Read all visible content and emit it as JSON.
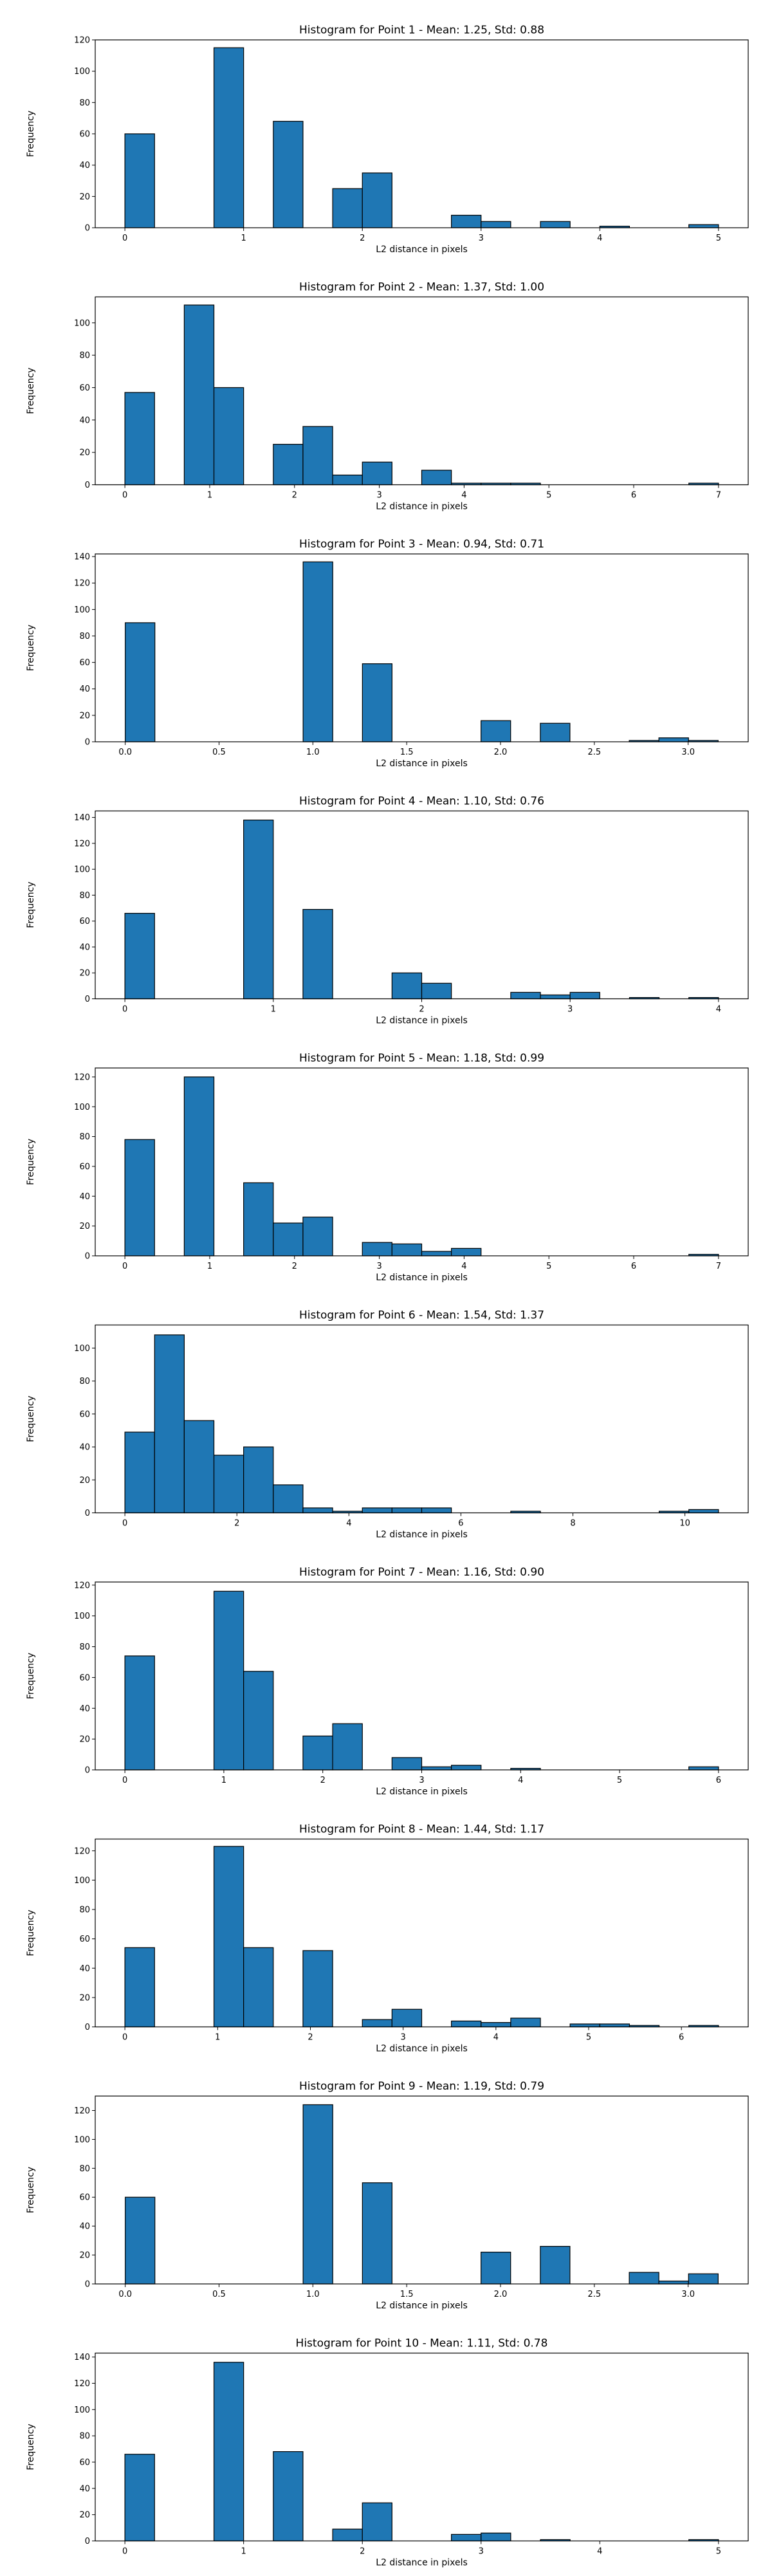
{
  "chart_data": [
    {
      "type": "bar",
      "title": "Histogram for Point 1 - Mean: 1.25, Std: 0.88",
      "xlabel": "L2 distance in pixels",
      "ylabel": "Frequency",
      "xlim": [
        -0.25,
        5.25
      ],
      "ylim": [
        0,
        120
      ],
      "xticks": [
        0,
        1,
        2,
        3,
        4,
        5
      ],
      "xtick_labels": [
        "0",
        "1",
        "2",
        "3",
        "4",
        "5"
      ],
      "yticks": [
        0,
        20,
        40,
        60,
        80,
        100,
        120
      ],
      "ytick_labels": [
        "0",
        "20",
        "40",
        "60",
        "80",
        "100",
        "120"
      ],
      "bins": [
        [
          0,
          0.25,
          60
        ],
        [
          0.75,
          1.0,
          115
        ],
        [
          1.25,
          1.5,
          68
        ],
        [
          1.75,
          2.0,
          25
        ],
        [
          2.0,
          2.25,
          35
        ],
        [
          2.75,
          3.0,
          8
        ],
        [
          3.0,
          3.25,
          4
        ],
        [
          3.5,
          3.75,
          4
        ],
        [
          4.0,
          4.25,
          1
        ],
        [
          4.75,
          5.0,
          2
        ]
      ]
    },
    {
      "type": "bar",
      "title": "Histogram for Point 2 - Mean: 1.37, Std: 1.00",
      "xlabel": "L2 distance in pixels",
      "ylabel": "Frequency",
      "xlim": [
        -0.35,
        7.35
      ],
      "ylim": [
        0,
        116
      ],
      "xticks": [
        0,
        1,
        2,
        3,
        4,
        5,
        6,
        7
      ],
      "xtick_labels": [
        "0",
        "1",
        "2",
        "3",
        "4",
        "5",
        "6",
        "7"
      ],
      "yticks": [
        0,
        20,
        40,
        60,
        80,
        100
      ],
      "ytick_labels": [
        "0",
        "20",
        "40",
        "60",
        "80",
        "100"
      ],
      "bins": [
        [
          0,
          0.35,
          57
        ],
        [
          0.7,
          1.05,
          111
        ],
        [
          1.05,
          1.4,
          60
        ],
        [
          1.75,
          2.1,
          25
        ],
        [
          2.1,
          2.45,
          36
        ],
        [
          2.45,
          2.8,
          6
        ],
        [
          2.8,
          3.15,
          14
        ],
        [
          3.5,
          3.85,
          9
        ],
        [
          3.85,
          4.2,
          1
        ],
        [
          4.2,
          4.55,
          1
        ],
        [
          4.55,
          4.9,
          1
        ],
        [
          6.65,
          7.0,
          1
        ]
      ]
    },
    {
      "type": "bar",
      "title": "Histogram for Point 3 - Mean: 0.94, Std: 0.71",
      "xlabel": "L2 distance in pixels",
      "ylabel": "Frequency",
      "xlim": [
        -0.16,
        3.32
      ],
      "ylim": [
        0,
        142
      ],
      "xticks": [
        0.0,
        0.5,
        1.0,
        1.5,
        2.0,
        2.5,
        3.0
      ],
      "xtick_labels": [
        "0.0",
        "0.5",
        "1.0",
        "1.5",
        "2.0",
        "2.5",
        "3.0"
      ],
      "yticks": [
        0,
        20,
        40,
        60,
        80,
        100,
        120,
        140
      ],
      "ytick_labels": [
        "0",
        "20",
        "40",
        "60",
        "80",
        "100",
        "120",
        "140"
      ],
      "bins": [
        [
          0,
          0.158,
          90
        ],
        [
          0.948,
          1.106,
          136
        ],
        [
          1.264,
          1.422,
          59
        ],
        [
          1.896,
          2.054,
          16
        ],
        [
          2.212,
          2.37,
          14
        ],
        [
          2.686,
          2.844,
          1
        ],
        [
          2.844,
          3.002,
          3
        ],
        [
          3.002,
          3.16,
          1
        ]
      ]
    },
    {
      "type": "bar",
      "title": "Histogram for Point 4 - Mean: 1.10, Std: 0.76",
      "xlabel": "L2 distance in pixels",
      "ylabel": "Frequency",
      "xlim": [
        -0.2,
        4.2
      ],
      "ylim": [
        0,
        145
      ],
      "xticks": [
        0,
        1,
        2,
        3,
        4
      ],
      "xtick_labels": [
        "0",
        "1",
        "2",
        "3",
        "4"
      ],
      "yticks": [
        0,
        20,
        40,
        60,
        80,
        100,
        120,
        140
      ],
      "ytick_labels": [
        "0",
        "20",
        "40",
        "60",
        "80",
        "100",
        "120",
        "140"
      ],
      "bins": [
        [
          0,
          0.2,
          66
        ],
        [
          0.8,
          1.0,
          138
        ],
        [
          1.2,
          1.4,
          69
        ],
        [
          1.8,
          2.0,
          20
        ],
        [
          2.0,
          2.2,
          12
        ],
        [
          2.6,
          2.8,
          5
        ],
        [
          2.8,
          3.0,
          3
        ],
        [
          3.0,
          3.2,
          5
        ],
        [
          3.4,
          3.6,
          1
        ],
        [
          3.8,
          4.0,
          1
        ]
      ]
    },
    {
      "type": "bar",
      "title": "Histogram for Point 5 - Mean: 1.18, Std: 0.99",
      "xlabel": "L2 distance in pixels",
      "ylabel": "Frequency",
      "xlim": [
        -0.35,
        7.35
      ],
      "ylim": [
        0,
        126
      ],
      "xticks": [
        0,
        1,
        2,
        3,
        4,
        5,
        6,
        7
      ],
      "xtick_labels": [
        "0",
        "1",
        "2",
        "3",
        "4",
        "5",
        "6",
        "7"
      ],
      "yticks": [
        0,
        20,
        40,
        60,
        80,
        100,
        120
      ],
      "ytick_labels": [
        "0",
        "20",
        "40",
        "60",
        "80",
        "100",
        "120"
      ],
      "bins": [
        [
          0,
          0.35,
          78
        ],
        [
          0.7,
          1.05,
          120
        ],
        [
          1.4,
          1.75,
          49
        ],
        [
          1.75,
          2.1,
          22
        ],
        [
          2.1,
          2.45,
          26
        ],
        [
          2.8,
          3.15,
          9
        ],
        [
          3.15,
          3.5,
          8
        ],
        [
          3.5,
          3.85,
          3
        ],
        [
          3.85,
          4.2,
          5
        ],
        [
          6.65,
          7.0,
          1
        ]
      ]
    },
    {
      "type": "bar",
      "title": "Histogram for Point 6 - Mean: 1.54, Std: 1.37",
      "xlabel": "L2 distance in pixels",
      "ylabel": "Frequency",
      "xlim": [
        -0.53,
        11.13
      ],
      "ylim": [
        0,
        114
      ],
      "xticks": [
        0,
        2,
        4,
        6,
        8,
        10
      ],
      "xtick_labels": [
        "0",
        "2",
        "4",
        "6",
        "8",
        "10"
      ],
      "yticks": [
        0,
        20,
        40,
        60,
        80,
        100
      ],
      "ytick_labels": [
        "0",
        "20",
        "40",
        "60",
        "80",
        "100"
      ],
      "bins": [
        [
          0,
          0.53,
          49
        ],
        [
          0.53,
          1.06,
          108
        ],
        [
          1.06,
          1.59,
          56
        ],
        [
          1.59,
          2.12,
          35
        ],
        [
          2.12,
          2.65,
          40
        ],
        [
          2.65,
          3.18,
          17
        ],
        [
          3.18,
          3.71,
          3
        ],
        [
          3.71,
          4.24,
          1
        ],
        [
          4.24,
          4.77,
          3
        ],
        [
          4.77,
          5.3,
          3
        ],
        [
          5.3,
          5.83,
          3
        ],
        [
          6.89,
          7.42,
          1
        ],
        [
          9.54,
          10.07,
          1
        ],
        [
          10.07,
          10.6,
          2
        ]
      ]
    },
    {
      "type": "bar",
      "title": "Histogram for Point 7 - Mean: 1.16, Std: 0.90",
      "xlabel": "L2 distance in pixels",
      "ylabel": "Frequency",
      "xlim": [
        -0.3,
        6.3
      ],
      "ylim": [
        0,
        122
      ],
      "xticks": [
        0,
        1,
        2,
        3,
        4,
        5,
        6
      ],
      "xtick_labels": [
        "0",
        "1",
        "2",
        "3",
        "4",
        "5",
        "6"
      ],
      "yticks": [
        0,
        20,
        40,
        60,
        80,
        100,
        120
      ],
      "ytick_labels": [
        "0",
        "20",
        "40",
        "60",
        "80",
        "100",
        "120"
      ],
      "bins": [
        [
          0,
          0.3,
          74
        ],
        [
          0.9,
          1.2,
          116
        ],
        [
          1.2,
          1.5,
          64
        ],
        [
          1.8,
          2.1,
          22
        ],
        [
          2.1,
          2.4,
          30
        ],
        [
          2.7,
          3.0,
          8
        ],
        [
          3.0,
          3.3,
          2
        ],
        [
          3.3,
          3.6,
          3
        ],
        [
          3.9,
          4.2,
          1
        ],
        [
          5.7,
          6.0,
          2
        ]
      ]
    },
    {
      "type": "bar",
      "title": "Histogram for Point 8 - Mean: 1.44, Std: 1.17",
      "xlabel": "L2 distance in pixels",
      "ylabel": "Frequency",
      "xlim": [
        -0.32,
        6.72
      ],
      "ylim": [
        0,
        128
      ],
      "xticks": [
        0,
        1,
        2,
        3,
        4,
        5,
        6
      ],
      "xtick_labels": [
        "0",
        "1",
        "2",
        "3",
        "4",
        "5",
        "6"
      ],
      "yticks": [
        0,
        20,
        40,
        60,
        80,
        100,
        120
      ],
      "ytick_labels": [
        "0",
        "20",
        "40",
        "60",
        "80",
        "100",
        "120"
      ],
      "bins": [
        [
          0,
          0.32,
          54
        ],
        [
          0.96,
          1.28,
          123
        ],
        [
          1.28,
          1.6,
          54
        ],
        [
          1.92,
          2.24,
          52
        ],
        [
          2.56,
          2.88,
          5
        ],
        [
          2.88,
          3.2,
          12
        ],
        [
          3.52,
          3.84,
          4
        ],
        [
          3.84,
          4.16,
          3
        ],
        [
          4.16,
          4.48,
          6
        ],
        [
          4.8,
          5.12,
          2
        ],
        [
          5.12,
          5.44,
          2
        ],
        [
          5.44,
          5.76,
          1
        ],
        [
          6.08,
          6.4,
          1
        ]
      ]
    },
    {
      "type": "bar",
      "title": "Histogram for Point 9 - Mean: 1.19, Std: 0.79",
      "xlabel": "L2 distance in pixels",
      "ylabel": "Frequency",
      "xlim": [
        -0.16,
        3.32
      ],
      "ylim": [
        0,
        130
      ],
      "xticks": [
        0.0,
        0.5,
        1.0,
        1.5,
        2.0,
        2.5,
        3.0
      ],
      "xtick_labels": [
        "0.0",
        "0.5",
        "1.0",
        "1.5",
        "2.0",
        "2.5",
        "3.0"
      ],
      "yticks": [
        0,
        20,
        40,
        60,
        80,
        100,
        120
      ],
      "ytick_labels": [
        "0",
        "20",
        "40",
        "60",
        "80",
        "100",
        "120"
      ],
      "bins": [
        [
          0,
          0.158,
          60
        ],
        [
          0.948,
          1.106,
          124
        ],
        [
          1.264,
          1.422,
          70
        ],
        [
          1.896,
          2.054,
          22
        ],
        [
          2.212,
          2.37,
          26
        ],
        [
          2.686,
          2.844,
          8
        ],
        [
          2.844,
          3.002,
          2
        ],
        [
          3.002,
          3.16,
          7
        ]
      ]
    },
    {
      "type": "bar",
      "title": "Histogram for Point 10 - Mean: 1.11, Std: 0.78",
      "xlabel": "L2 distance in pixels",
      "ylabel": "Frequency",
      "xlim": [
        -0.25,
        5.25
      ],
      "ylim": [
        0,
        143
      ],
      "xticks": [
        0,
        1,
        2,
        3,
        4,
        5
      ],
      "xtick_labels": [
        "0",
        "1",
        "2",
        "3",
        "4",
        "5"
      ],
      "yticks": [
        0,
        20,
        40,
        60,
        80,
        100,
        120,
        140
      ],
      "ytick_labels": [
        "0",
        "20",
        "40",
        "60",
        "80",
        "100",
        "120",
        "140"
      ],
      "bins": [
        [
          0,
          0.25,
          66
        ],
        [
          0.75,
          1.0,
          136
        ],
        [
          1.25,
          1.5,
          68
        ],
        [
          1.75,
          2.0,
          9
        ],
        [
          2.0,
          2.25,
          29
        ],
        [
          2.75,
          3.0,
          5
        ],
        [
          3.0,
          3.25,
          6
        ],
        [
          3.5,
          3.75,
          1
        ],
        [
          4.75,
          5.0,
          1
        ]
      ]
    }
  ]
}
